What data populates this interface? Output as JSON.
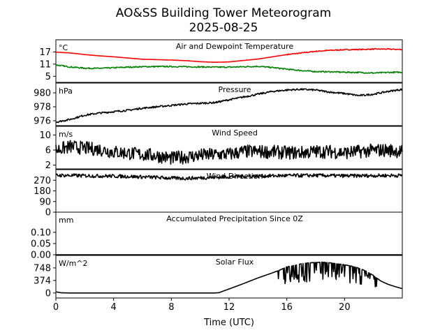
{
  "title_line1": "AO&SS Building Tower Meteorogram",
  "title_line2": "2025-08-25",
  "xlabel": "Time (UTC)",
  "x_ticks": [
    0,
    4,
    8,
    12,
    16,
    20
  ],
  "x_range": [
    0,
    24
  ],
  "colors": {
    "air": "#ff0000",
    "dew": "#008000",
    "line": "#000000"
  },
  "chart_data": [
    {
      "type": "line",
      "title": "Air and Dewpoint Temperature",
      "unit": "°C",
      "yticks": [
        5,
        11,
        17
      ],
      "ylim": [
        2,
        23
      ],
      "series": [
        {
          "name": "Air Temperature",
          "color": "#ff0000",
          "x": [
            0,
            1,
            2,
            3,
            4,
            5,
            6,
            7,
            8,
            9,
            10,
            11,
            12,
            13,
            14,
            15,
            16,
            17,
            18,
            19,
            20,
            21,
            22,
            23,
            24
          ],
          "values": [
            16.9,
            16.5,
            15.7,
            15.1,
            14.6,
            14.0,
            13.4,
            13.2,
            13.0,
            12.7,
            12.2,
            11.9,
            12.1,
            12.8,
            13.5,
            14.6,
            15.7,
            16.5,
            17.3,
            17.8,
            18.1,
            18.2,
            18.4,
            18.4,
            18.2
          ]
        },
        {
          "name": "Dewpoint Temperature",
          "color": "#008000",
          "x": [
            0,
            1,
            2,
            3,
            4,
            5,
            6,
            7,
            8,
            9,
            10,
            11,
            12,
            13,
            14,
            15,
            16,
            17,
            18,
            19,
            20,
            21,
            22,
            23,
            24
          ],
          "values": [
            10.6,
            9.6,
            9.0,
            8.9,
            9.2,
            9.5,
            9.7,
            9.8,
            9.8,
            9.7,
            9.6,
            9.5,
            9.5,
            9.7,
            9.9,
            9.3,
            8.5,
            7.8,
            7.3,
            7.2,
            7.0,
            6.9,
            6.6,
            6.9,
            7.0
          ]
        }
      ]
    },
    {
      "type": "line",
      "title": "Pressure",
      "unit": "hPa",
      "yticks": [
        976,
        978,
        980
      ],
      "ylim": [
        975.3,
        981.4
      ],
      "series": [
        {
          "name": "Pressure",
          "color": "#000000",
          "x": [
            0,
            1,
            2,
            3,
            4,
            5,
            6,
            7,
            8,
            9,
            10,
            11,
            12,
            13,
            14,
            15,
            16,
            17,
            18,
            19,
            20,
            21,
            22,
            23,
            24
          ],
          "values": [
            975.8,
            976.2,
            976.8,
            977.1,
            977.3,
            977.5,
            977.8,
            978.0,
            978.2,
            978.4,
            978.5,
            978.6,
            979.0,
            979.4,
            979.8,
            980.2,
            980.4,
            980.5,
            980.4,
            980.1,
            979.9,
            979.6,
            979.8,
            980.2,
            980.5
          ]
        }
      ]
    },
    {
      "type": "line",
      "title": "Wind Speed",
      "unit": "m/s",
      "yticks": [
        2,
        6,
        10
      ],
      "ylim": [
        1,
        12.3
      ],
      "series": [
        {
          "name": "Wind Speed",
          "color": "#000000",
          "x": [
            0,
            1,
            2,
            3,
            4,
            5,
            6,
            7,
            8,
            9,
            10,
            11,
            12,
            13,
            14,
            15,
            16,
            17,
            18,
            19,
            20,
            21,
            22,
            23,
            24
          ],
          "values": [
            6.0,
            6.9,
            6.5,
            6.2,
            5.5,
            5.2,
            4.8,
            4.5,
            3.8,
            4.2,
            4.6,
            4.8,
            4.9,
            5.6,
            5.6,
            5.5,
            5.3,
            5.3,
            5.6,
            5.6,
            5.3,
            5.6,
            5.9,
            6.0,
            5.6
          ]
        }
      ]
    },
    {
      "type": "line",
      "title": "Wind Direction",
      "unit": "",
      "yticks": [
        0,
        90,
        180,
        270
      ],
      "ylim": [
        0,
        360
      ],
      "series": [
        {
          "name": "Wind Direction",
          "color": "#000000",
          "x": [
            0,
            1,
            2,
            3,
            4,
            5,
            6,
            7,
            8,
            9,
            10,
            11,
            12,
            13,
            14,
            15,
            16,
            17,
            18,
            19,
            20,
            21,
            22,
            23,
            24
          ],
          "values": [
            312,
            310,
            308,
            306,
            305,
            302,
            298,
            294,
            288,
            286,
            290,
            295,
            300,
            303,
            305,
            307,
            309,
            310,
            311,
            309,
            307,
            308,
            309,
            310,
            310
          ]
        }
      ]
    },
    {
      "type": "line",
      "title": "Accumulated Precipitation Since 0Z",
      "unit": "mm",
      "yticks": [
        0.0,
        0.05,
        0.1
      ],
      "ytick_labels": [
        "0.00",
        "0.05",
        "0.10"
      ],
      "ylim": [
        0,
        0.19
      ],
      "series": [
        {
          "name": "Accumulated Precipitation",
          "color": "#000000",
          "x": [
            0,
            24
          ],
          "values": [
            0,
            0
          ]
        }
      ]
    },
    {
      "type": "line",
      "title": "Solar Flux",
      "unit": "W/m^2",
      "yticks": [
        0,
        374,
        748
      ],
      "ylim": [
        -150,
        1120
      ],
      "series": [
        {
          "name": "Solar Flux",
          "color": "#000000",
          "x": [
            0,
            0.4,
            1,
            2,
            3,
            4,
            5,
            6,
            7,
            8,
            9,
            10,
            11,
            11.3,
            12,
            13,
            14,
            15,
            15.5,
            16,
            16.5,
            17,
            17.5,
            18,
            18.5,
            19,
            19.5,
            20,
            20.5,
            21,
            21.5,
            22,
            22.5,
            23,
            23.5,
            24
          ],
          "values": [
            35,
            5,
            0,
            0,
            0,
            0,
            0,
            0,
            0,
            0,
            0,
            0,
            0,
            10,
            120,
            280,
            450,
            600,
            680,
            780,
            820,
            870,
            900,
            910,
            920,
            900,
            870,
            840,
            800,
            740,
            650,
            520,
            360,
            260,
            190,
            130
          ]
        }
      ]
    }
  ]
}
